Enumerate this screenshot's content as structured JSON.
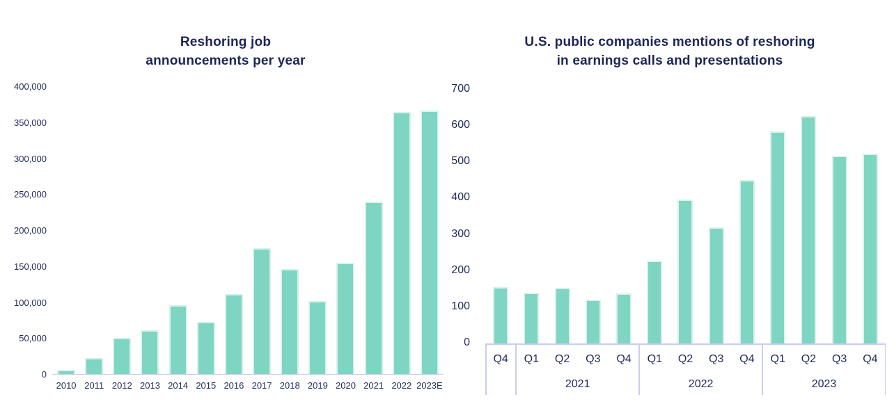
{
  "colors": {
    "background": "#FFFFFF",
    "bar_fill": "#7ED5C1",
    "bar_edge": "#D9F2EB",
    "axis_line": "#C9CEEC",
    "text": "#1E2A5B",
    "title_text": "#1B2657"
  },
  "chart_data": [
    {
      "id": "reshoring-job-announcements",
      "type": "bar",
      "title": "Reshoring job announcements per year",
      "title_lines": [
        "Reshoring job",
        "announcements per year"
      ],
      "categories": [
        "2010",
        "2011",
        "2012",
        "2013",
        "2014",
        "2015",
        "2016",
        "2017",
        "2018",
        "2019",
        "2020",
        "2021",
        "2022",
        "2023E"
      ],
      "values": [
        6000,
        22000,
        50000,
        61000,
        96000,
        72000,
        111000,
        175000,
        146000,
        101000,
        155000,
        240000,
        364000,
        366000
      ],
      "xlabel": "",
      "ylabel": "",
      "ylim": [
        0,
        400000
      ],
      "ytick_step": 50000,
      "ytick_labels": [
        "400,000",
        "350,000",
        "300,000",
        "250,000",
        "200,000",
        "150,000",
        "100,000",
        "50,000",
        "0"
      ],
      "grid": false,
      "legend": "none",
      "bar_color": "#7ED5C1"
    },
    {
      "id": "reshoring-mentions-earnings-calls",
      "type": "bar",
      "title": "U.S. public companies mentions of reshoring in earnings calls and presentations",
      "title_lines": [
        "U.S. public companies mentions of reshoring",
        "in earnings calls and presentations"
      ],
      "categories": [
        "Q4",
        "Q1",
        "Q2",
        "Q3",
        "Q4",
        "Q1",
        "Q2",
        "Q3",
        "Q4",
        "Q1",
        "Q2",
        "Q3",
        "Q4"
      ],
      "groups": [
        {
          "label": "",
          "span": 1
        },
        {
          "label": "2021",
          "span": 4
        },
        {
          "label": "2022",
          "span": 4
        },
        {
          "label": "2023",
          "span": 4
        }
      ],
      "values": [
        155,
        140,
        153,
        120,
        138,
        228,
        395,
        320,
        450,
        583,
        625,
        517,
        523
      ],
      "xlabel": "",
      "ylabel": "",
      "ylim": [
        0,
        700
      ],
      "ytick_step": 100,
      "ytick_labels": [
        "700",
        "600",
        "500",
        "400",
        "300",
        "200",
        "100",
        "0"
      ],
      "grid": false,
      "legend": "none",
      "bar_color": "#7ED5C1"
    }
  ]
}
